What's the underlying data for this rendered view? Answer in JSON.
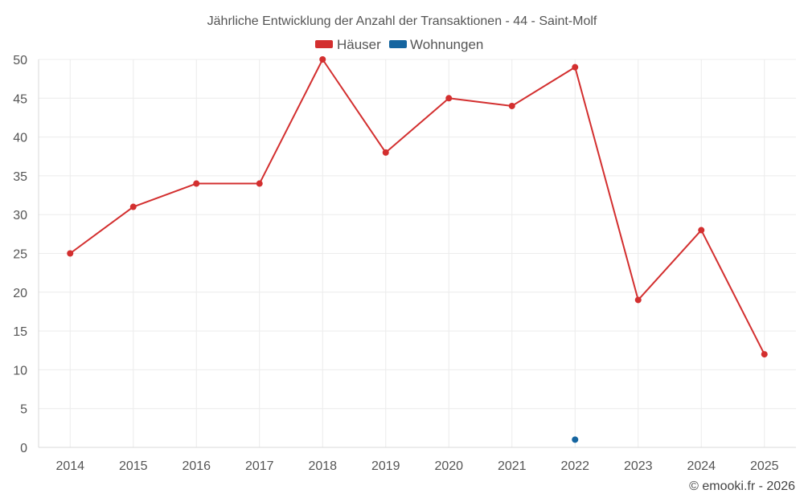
{
  "chart_data": {
    "type": "line",
    "title": "Jährliche Entwicklung der Anzahl der Transaktionen - 44 - Saint-Molf",
    "categories": [
      "2014",
      "2015",
      "2016",
      "2017",
      "2018",
      "2019",
      "2020",
      "2021",
      "2022",
      "2023",
      "2024",
      "2025"
    ],
    "series": [
      {
        "name": "Häuser",
        "color": "#d32f2f",
        "values": [
          25,
          31,
          34,
          34,
          50,
          38,
          45,
          44,
          49,
          19,
          28,
          12
        ]
      },
      {
        "name": "Wohnungen",
        "color": "#1565a0",
        "values": [
          null,
          null,
          null,
          null,
          null,
          null,
          null,
          null,
          1,
          null,
          null,
          null
        ]
      }
    ],
    "ylim": [
      0,
      50
    ],
    "yticks": [
      0,
      5,
      10,
      15,
      20,
      25,
      30,
      35,
      40,
      45,
      50
    ],
    "xlabel": "",
    "ylabel": "",
    "grid": true,
    "legend_position": "top-center"
  },
  "credit": "© emooki.fr - 2026"
}
